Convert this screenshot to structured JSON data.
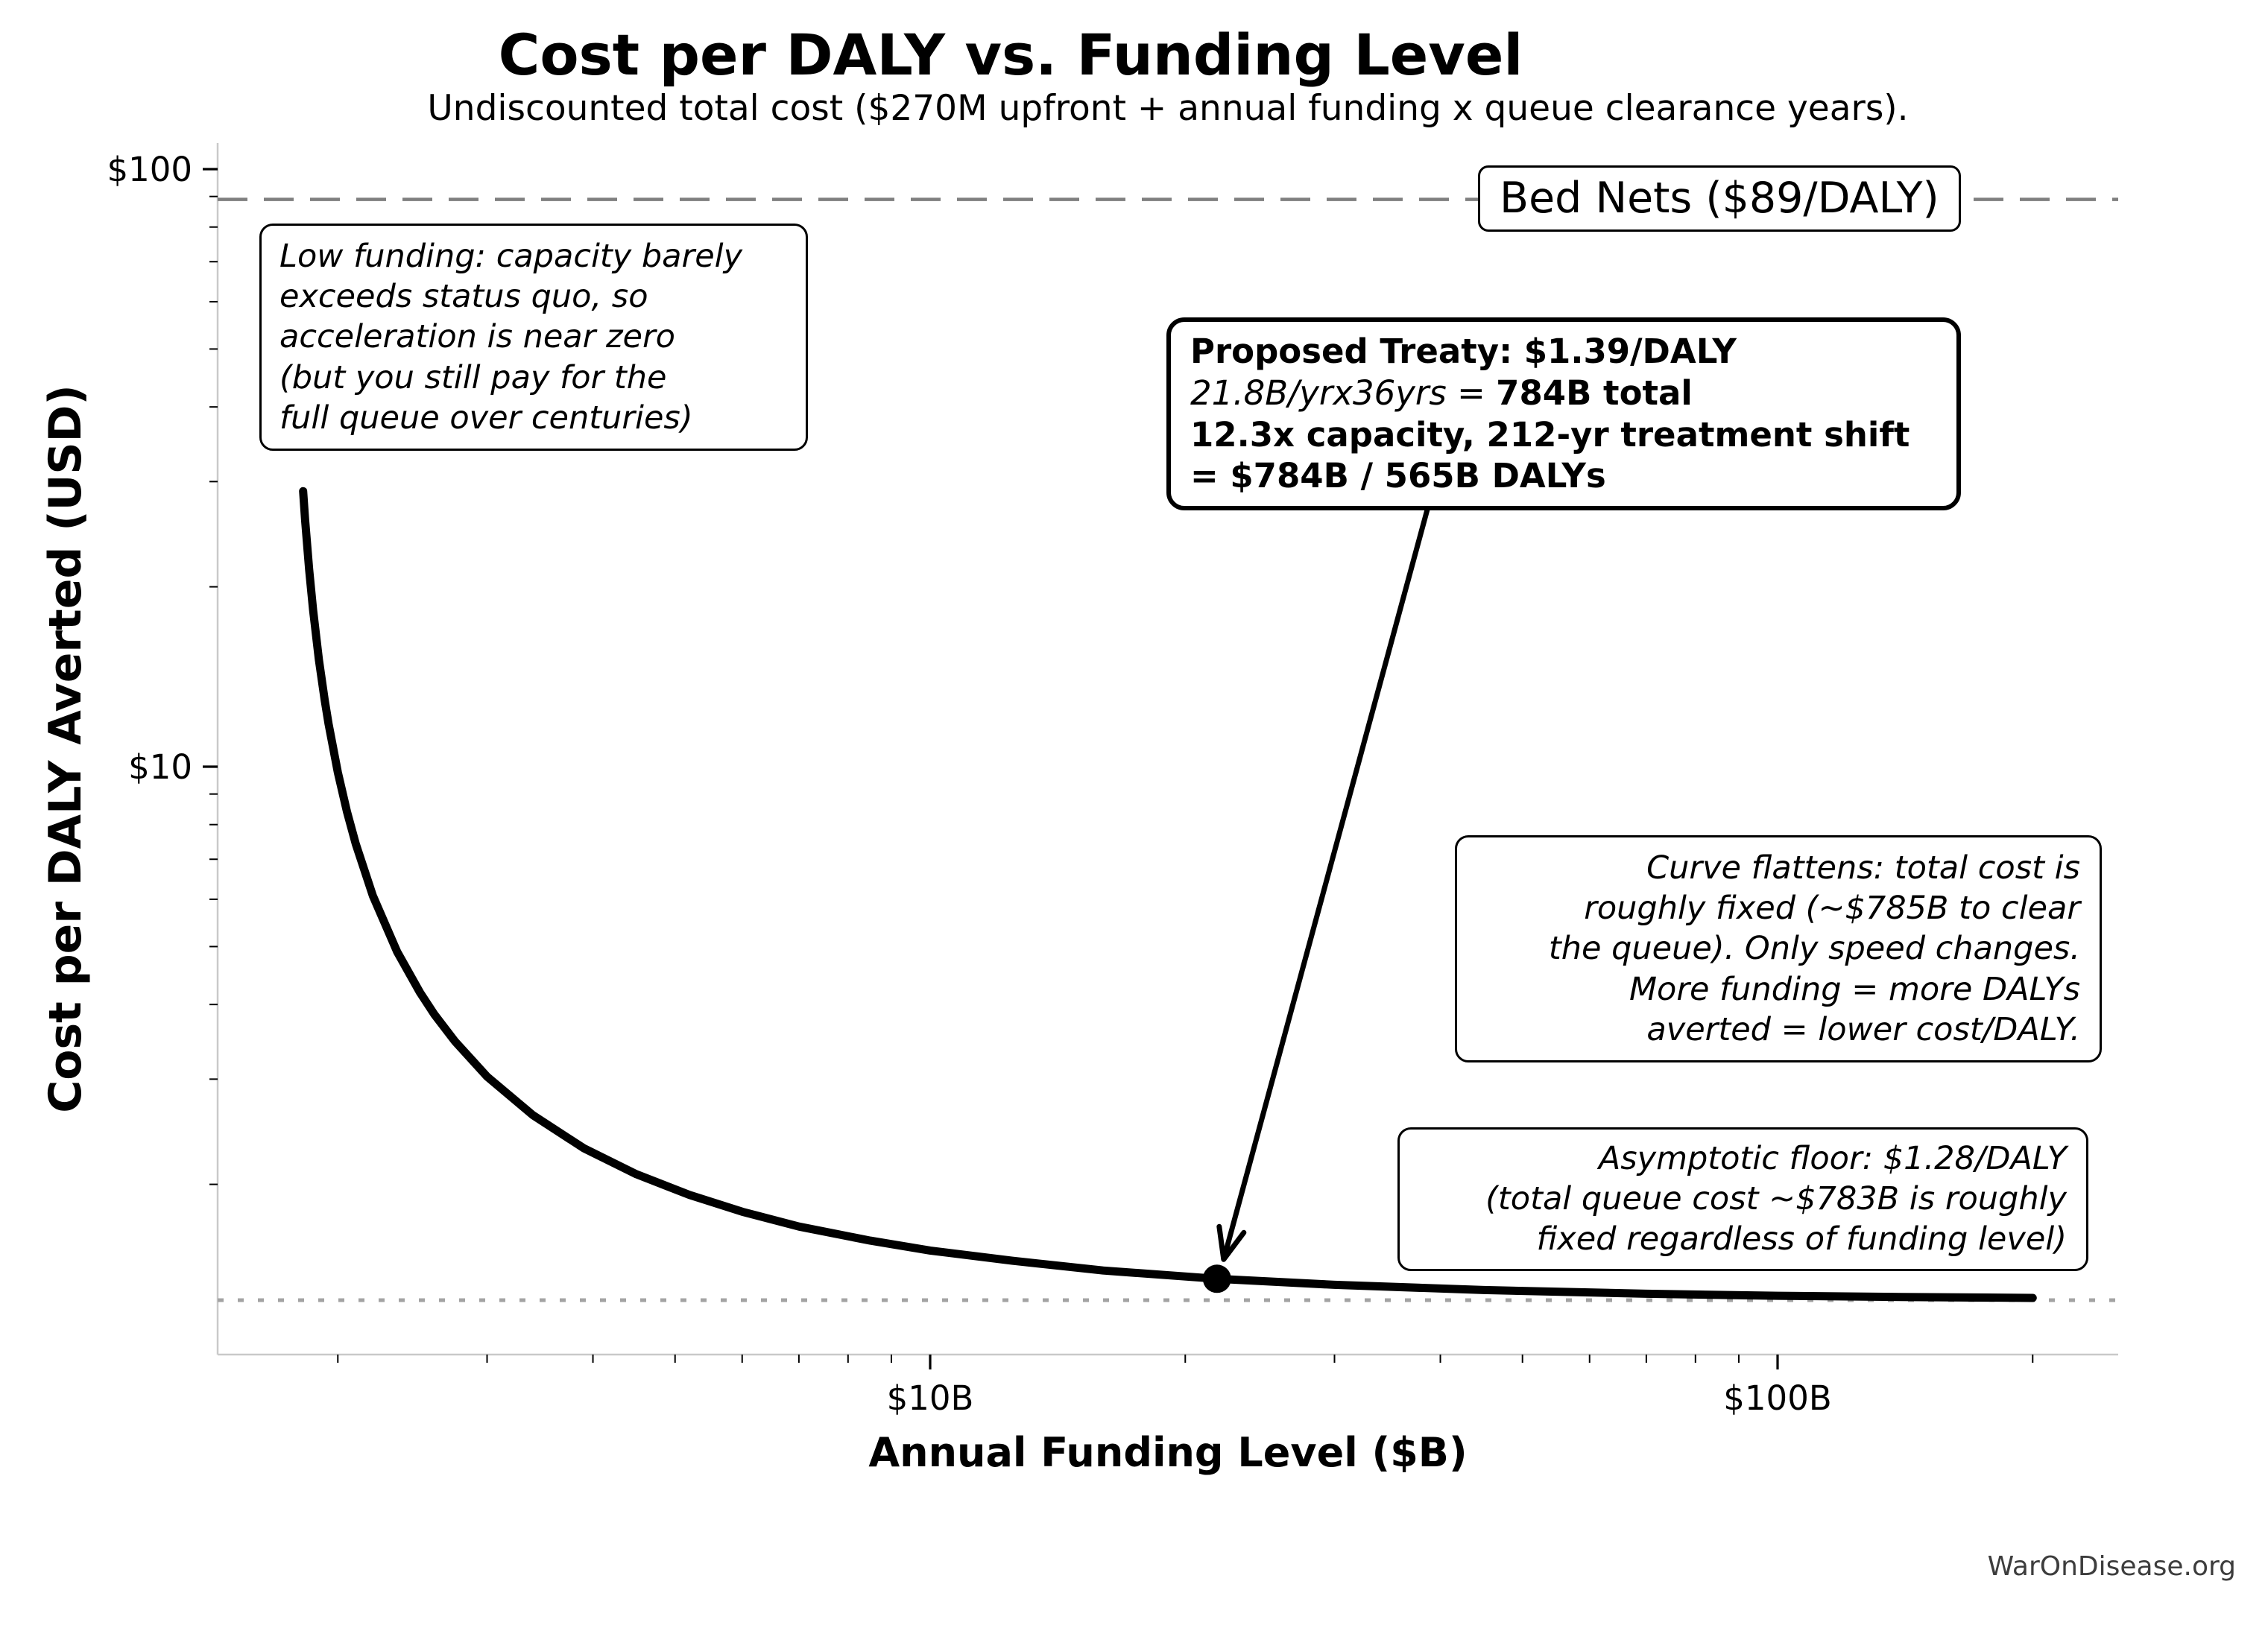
{
  "chart_data": {
    "type": "line",
    "title": "Cost per DALY vs. Funding Level",
    "subtitle": "Undiscounted total cost ($270M upfront + annual funding x queue clearance years).",
    "xlabel": "Annual Funding Level ($B)",
    "ylabel": "Cost per DALY Averted (USD)",
    "x_scale": "log",
    "y_scale": "log",
    "grid": false,
    "x_domain_billions": [
      1.44,
      252
    ],
    "y_domain_usd": [
      1.04,
      110
    ],
    "x_ticks": {
      "major": [
        {
          "v": 10,
          "label": "$10B"
        },
        {
          "v": 100,
          "label": "$100B"
        }
      ],
      "minor": [
        2,
        3,
        4,
        5,
        6,
        7,
        8,
        9,
        20,
        30,
        40,
        50,
        60,
        70,
        80,
        90,
        200
      ]
    },
    "y_ticks": {
      "major": [
        {
          "v": 100,
          "label": "$100"
        },
        {
          "v": 10,
          "label": "$10"
        }
      ],
      "minor": [
        90,
        80,
        70,
        60,
        50,
        40,
        30,
        20,
        9,
        8,
        7,
        6,
        5,
        4,
        3,
        2
      ]
    },
    "reference_lines": [
      {
        "name": "bed-nets",
        "value_usd": 89,
        "style": "dashed",
        "color": "#7f7f7f",
        "label": "Bed Nets ($89/DALY)"
      },
      {
        "name": "asymptotic-floor",
        "value_usd": 1.28,
        "style": "dotted",
        "color": "#a3a3a3",
        "label": ""
      }
    ],
    "highlight_point": {
      "x_billions": 21.8,
      "y_usd": 1.39
    },
    "series": [
      {
        "name": "cost-per-daly-curve",
        "color": "#000000",
        "points": [
          [
            1.82,
            28.91
          ],
          [
            1.83,
            25.84
          ],
          [
            1.85,
            21.37
          ],
          [
            1.87,
            18.28
          ],
          [
            1.9,
            15.09
          ],
          [
            1.93,
            12.91
          ],
          [
            1.95,
            11.8
          ],
          [
            2.0,
            9.78
          ],
          [
            2.05,
            8.41
          ],
          [
            2.1,
            7.42
          ],
          [
            2.2,
            6.08
          ],
          [
            2.35,
            4.9
          ],
          [
            2.5,
            4.19
          ],
          [
            2.6,
            3.85
          ],
          [
            2.75,
            3.47
          ],
          [
            3.0,
            3.03
          ],
          [
            3.4,
            2.61
          ],
          [
            3.9,
            2.3
          ],
          [
            4.5,
            2.08
          ],
          [
            5.2,
            1.92
          ],
          [
            6.0,
            1.8
          ],
          [
            7.0,
            1.7
          ],
          [
            8.5,
            1.61
          ],
          [
            10,
            1.55
          ],
          [
            12.5,
            1.49
          ],
          [
            16,
            1.435
          ],
          [
            21.8,
            1.39
          ],
          [
            30,
            1.358
          ],
          [
            45,
            1.331
          ],
          [
            70,
            1.312
          ],
          [
            100,
            1.302
          ],
          [
            140,
            1.296
          ],
          [
            200,
            1.291
          ]
        ]
      }
    ]
  },
  "annotations": {
    "low_funding": {
      "text": "Low funding: capacity barely\nexceeds status quo, so\nacceleration is near zero\n(but you still pay for the\nfull queue over centuries)"
    },
    "treaty": {
      "line1": "Proposed Treaty: $1.39/DALY",
      "line2_math": "21.8B/yrx36yrs",
      "line2_eq": " = ",
      "line2_bold": "784B total",
      "line3": "12.3x capacity, 212-yr treatment shift",
      "line4": "= $784B / 565B DALYs"
    },
    "curve_flattens": {
      "text": "Curve flattens: total cost is\nroughly fixed (~$785B to clear\nthe queue). Only speed changes.\nMore funding = more DALYs\naverted = lower cost/DALY."
    },
    "asymptotic_floor": {
      "text": "Asymptotic floor: $1.28/DALY\n(total queue cost ~$783B is roughly\nfixed regardless of funding level)"
    }
  },
  "watermark": {
    "text": "WarOnDisease.org"
  }
}
